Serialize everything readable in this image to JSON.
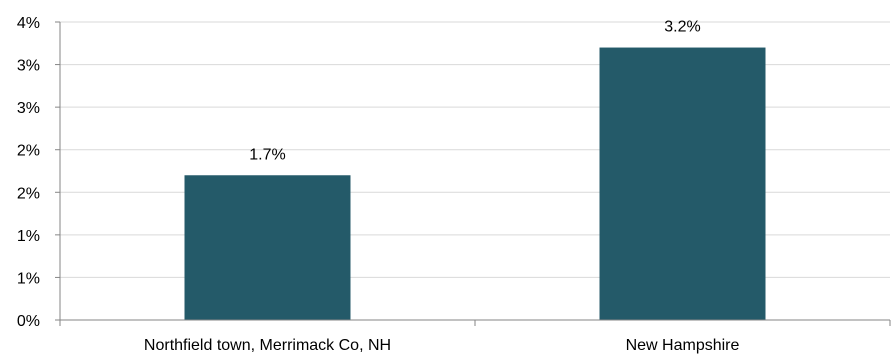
{
  "chart_data": {
    "type": "bar",
    "categories": [
      "Northfield town, Merrimack Co, NH",
      "New Hampshire"
    ],
    "values": [
      1.7,
      3.2
    ],
    "value_labels": [
      "1.7%",
      "3.2%"
    ],
    "y_tick_values": [
      0,
      0.5,
      1.0,
      1.5,
      2.0,
      2.5,
      3.0,
      3.5
    ],
    "y_tick_labels": [
      "0%",
      "1%",
      "1%",
      "2%",
      "2%",
      "3%",
      "3%",
      "4%"
    ],
    "ylim": [
      0,
      3.5
    ],
    "grid": true,
    "legend": "none",
    "bar_color": "#245A69",
    "grid_color": "#D9D9D9",
    "axis_color": "#868686"
  }
}
